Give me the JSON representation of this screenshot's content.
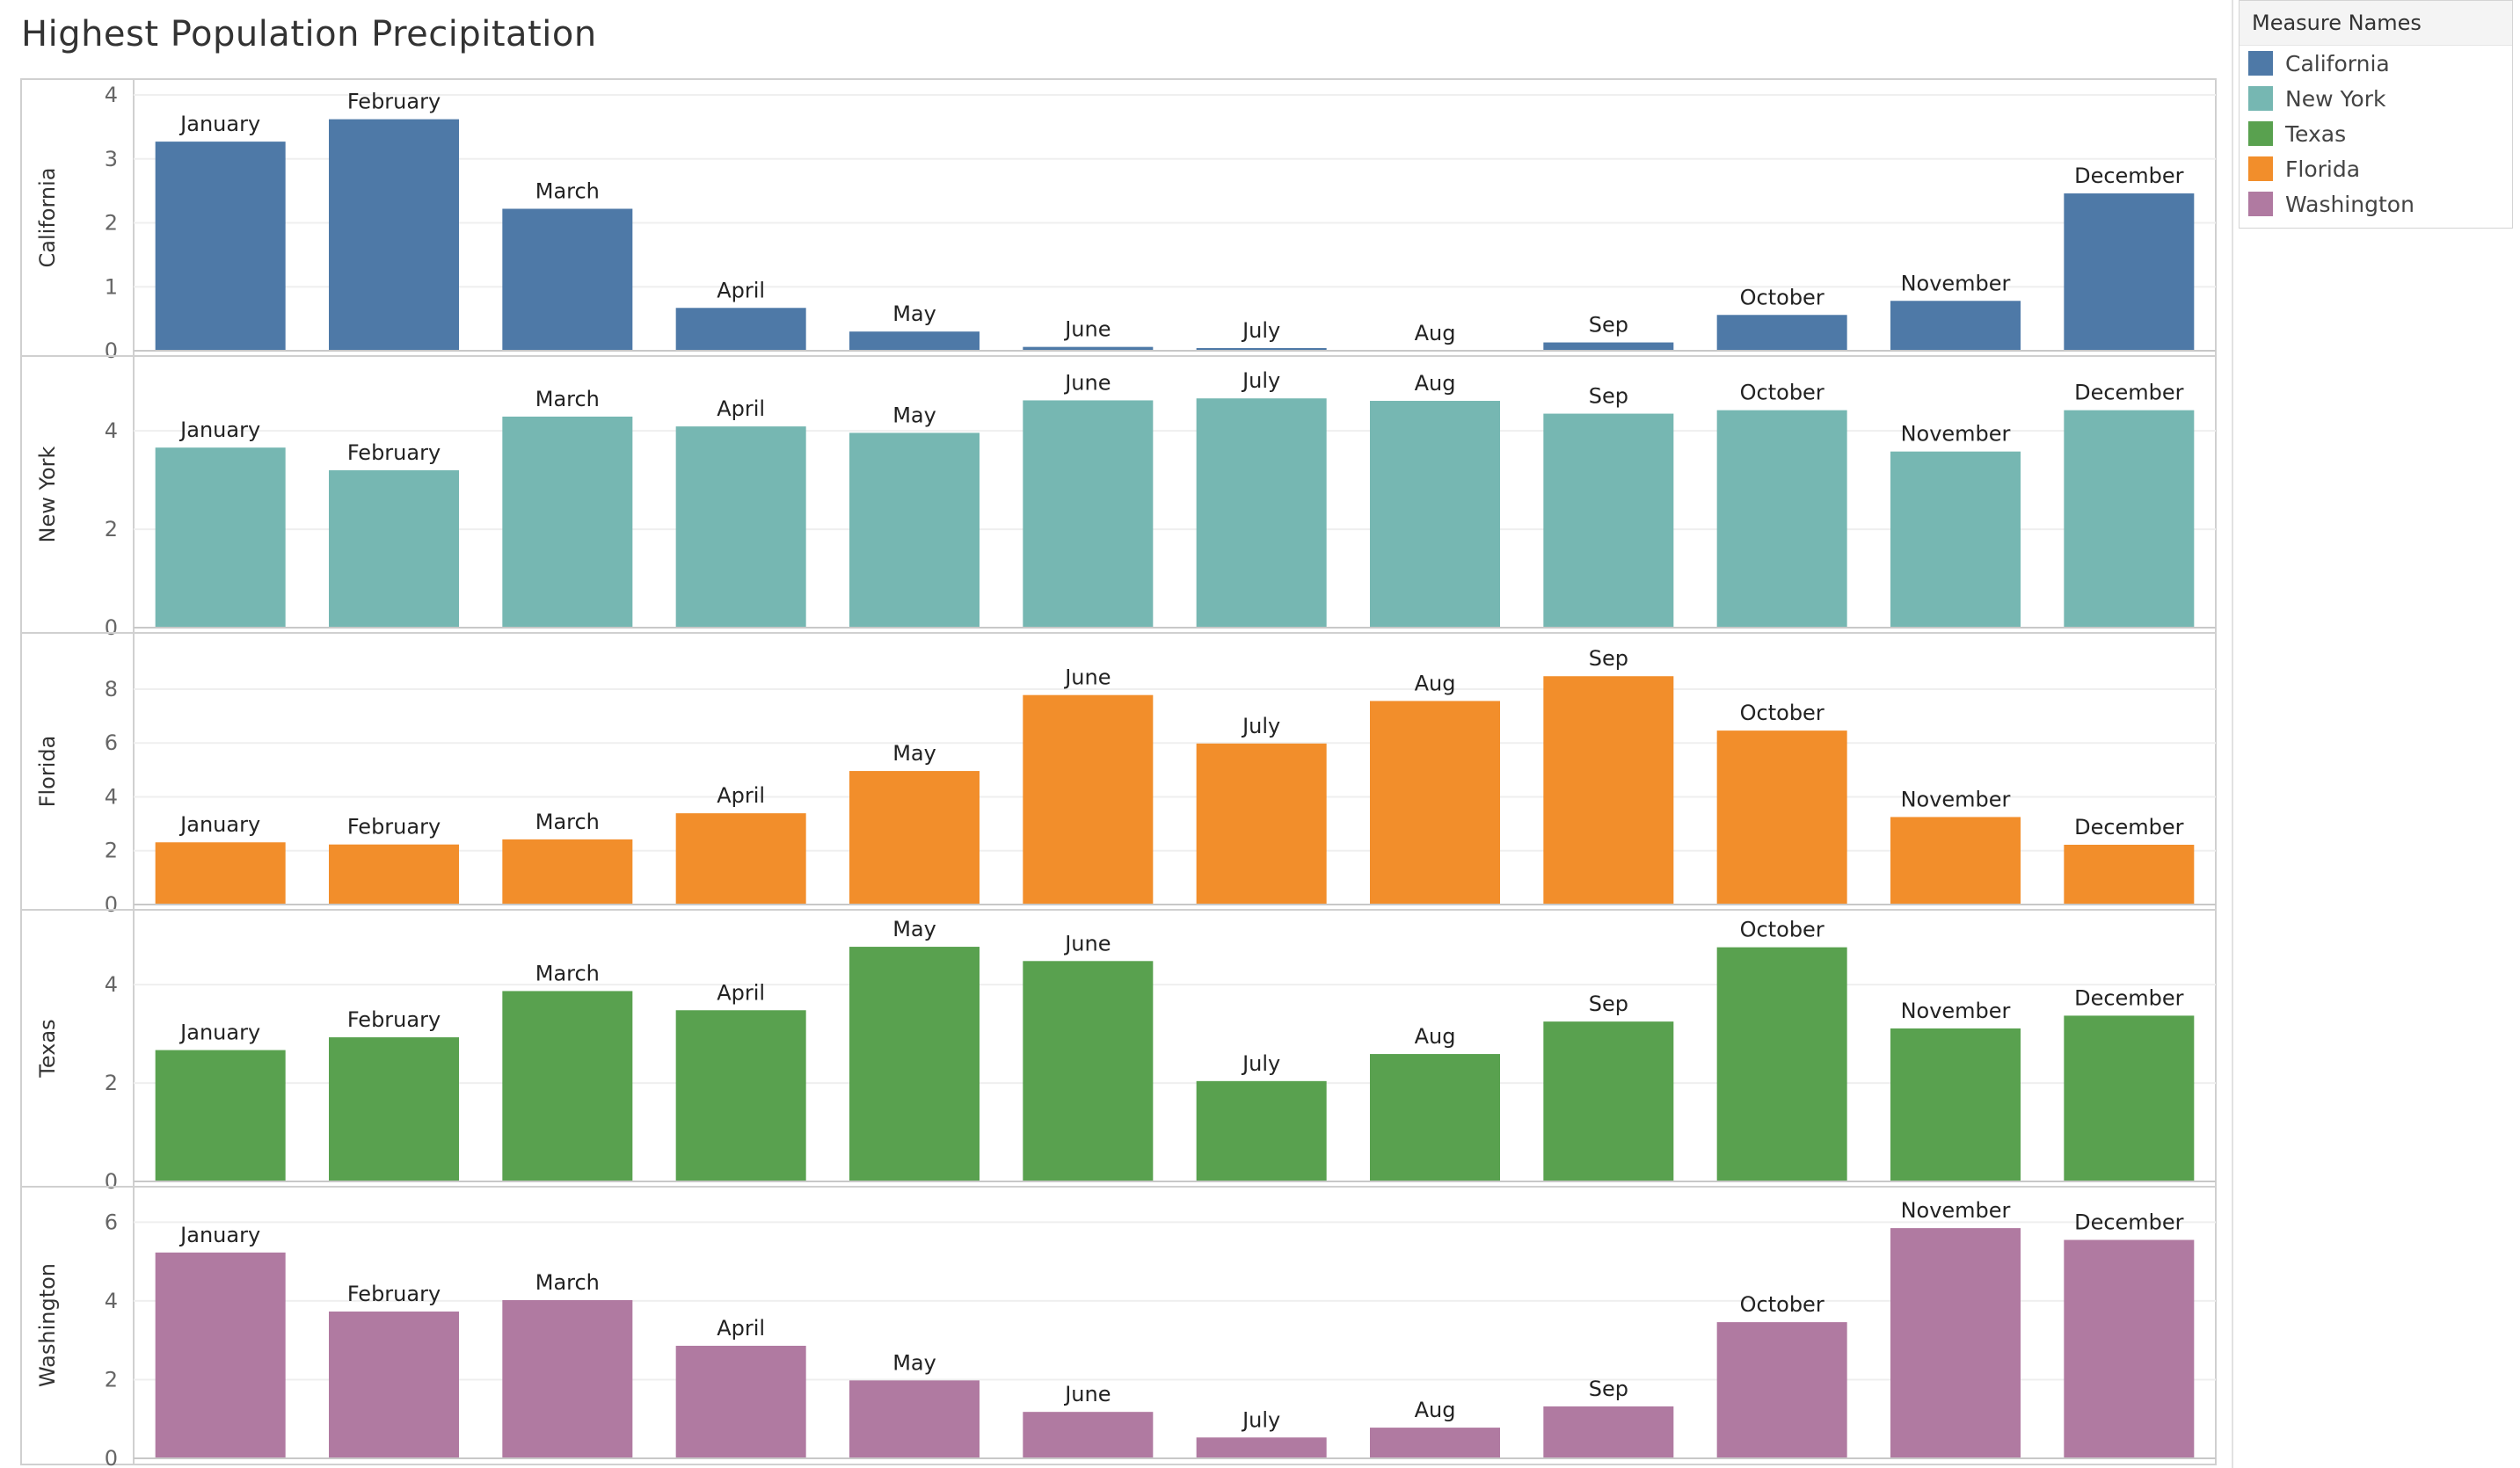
{
  "chart_data": {
    "type": "bar",
    "title": "Highest Population Precipitation",
    "categories": [
      "January",
      "February",
      "March",
      "April",
      "May",
      "June",
      "July",
      "Aug",
      "Sep",
      "October",
      "November",
      "December"
    ],
    "legend": {
      "title": "Measure Names",
      "placement": "top-right"
    },
    "grid": true,
    "series": [
      {
        "name": "California",
        "color": "#4e79a7",
        "ylim": [
          0,
          4
        ],
        "ticks": [
          0,
          1,
          2,
          3,
          4
        ],
        "values": [
          3.27,
          3.62,
          2.22,
          0.67,
          0.3,
          0.06,
          0.02,
          0.0,
          0.13,
          0.56,
          0.78,
          2.46
        ]
      },
      {
        "name": "New York",
        "color": "#76b7b2",
        "ylim": [
          0,
          5.2
        ],
        "ticks": [
          0,
          2,
          4
        ],
        "values": [
          3.66,
          3.2,
          4.29,
          4.09,
          3.96,
          4.62,
          4.66,
          4.61,
          4.35,
          4.42,
          3.58,
          4.42
        ]
      },
      {
        "name": "Florida",
        "color": "#f28e2b",
        "ylim": [
          0,
          9.5
        ],
        "ticks": [
          0,
          2,
          4,
          6,
          8
        ],
        "values": [
          2.31,
          2.23,
          2.42,
          3.39,
          4.96,
          7.78,
          5.98,
          7.56,
          8.48,
          6.46,
          3.25,
          2.22
        ]
      },
      {
        "name": "Texas",
        "color": "#59a14f",
        "ylim": [
          0,
          5.2
        ],
        "ticks": [
          0,
          2,
          4
        ],
        "values": [
          2.67,
          2.93,
          3.87,
          3.48,
          4.77,
          4.48,
          2.04,
          2.59,
          3.25,
          4.76,
          3.11,
          3.37
        ]
      },
      {
        "name": "Washington",
        "color": "#b07aa1",
        "ylim": [
          0,
          6.5
        ],
        "ticks": [
          0,
          2,
          4,
          6
        ],
        "values": [
          5.23,
          3.73,
          4.02,
          2.86,
          1.98,
          1.18,
          0.53,
          0.78,
          1.32,
          3.46,
          5.85,
          5.55
        ]
      }
    ]
  }
}
